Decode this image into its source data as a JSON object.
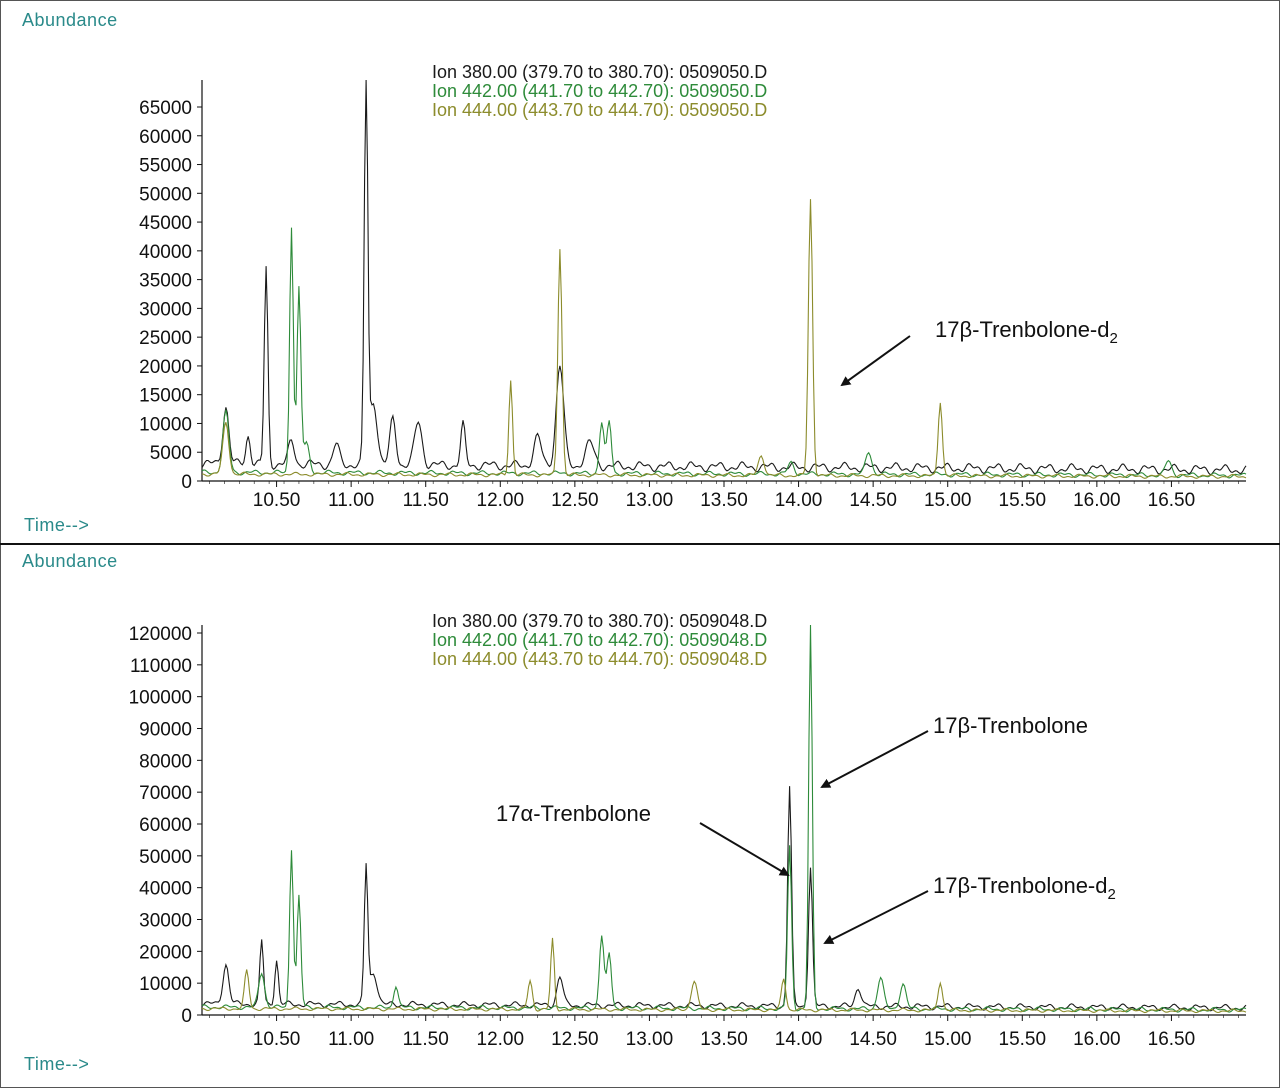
{
  "colors": {
    "accent": "#2a8a8a",
    "ion380": "#1a1a1a",
    "ion442": "#2e8b3a",
    "ion444": "#8c8c2c",
    "axis": "#111111"
  },
  "chart_data": [
    {
      "type": "line",
      "ylabel": "Abundance",
      "xlabel": "Time-->",
      "xlim": [
        10.0,
        17.0
      ],
      "ylim": [
        0,
        70000
      ],
      "yticks": [
        0,
        5000,
        10000,
        15000,
        20000,
        25000,
        30000,
        35000,
        40000,
        45000,
        50000,
        55000,
        60000,
        65000
      ],
      "xticks": [
        10.5,
        11.0,
        11.5,
        12.0,
        12.5,
        13.0,
        13.5,
        14.0,
        14.5,
        15.0,
        15.5,
        16.0,
        16.5
      ],
      "xtick_labels": [
        "10.50",
        "11.00",
        "11.50",
        "12.00",
        "12.50",
        "13.00",
        "13.50",
        "14.00",
        "14.50",
        "15.00",
        "15.50",
        "16.00",
        "16.50"
      ],
      "legend": [
        "Ion 380.00 (379.70 to 380.70): 0509050.D",
        "Ion 442.00 (441.70 to 442.70): 0509050.D",
        "Ion 444.00 (443.70 to 444.70): 0509050.D"
      ],
      "annotations": [
        {
          "text": "17β-Trenbolone-d",
          "sub": "2",
          "x": 14.05,
          "y": 18000
        }
      ],
      "series": [
        {
          "name": "Ion 380.00 (379.70 to 380.70): 0509050.D",
          "baseline": 3000,
          "peaks": [
            [
              10.16,
              10000,
              0.02
            ],
            [
              10.31,
              5000,
              0.015
            ],
            [
              10.43,
              34000,
              0.012
            ],
            [
              10.6,
              4000,
              0.02
            ],
            [
              10.9,
              3500,
              0.02
            ],
            [
              11.1,
              69000,
              0.012
            ],
            [
              11.15,
              11000,
              0.025
            ],
            [
              11.28,
              8000,
              0.02
            ],
            [
              11.45,
              7500,
              0.025
            ],
            [
              11.75,
              7000,
              0.015
            ],
            [
              12.25,
              5000,
              0.025
            ],
            [
              12.4,
              17500,
              0.025
            ],
            [
              12.6,
              4000,
              0.03
            ]
          ]
        },
        {
          "name": "Ion 442.00 (441.70 to 442.70): 0509050.D",
          "baseline": 1500,
          "peaks": [
            [
              10.16,
              10500,
              0.02
            ],
            [
              10.6,
              43000,
              0.012
            ],
            [
              10.65,
              32000,
              0.013
            ],
            [
              10.7,
              5000,
              0.02
            ],
            [
              12.68,
              9000,
              0.015
            ],
            [
              12.73,
              9000,
              0.015
            ],
            [
              13.95,
              2000,
              0.02
            ],
            [
              14.47,
              4000,
              0.02
            ],
            [
              16.48,
              2500,
              0.02
            ]
          ]
        },
        {
          "name": "Ion 444.00 (443.70 to 444.70): 0509050.D",
          "baseline": 1200,
          "peaks": [
            [
              10.16,
              9000,
              0.02
            ],
            [
              12.07,
              16500,
              0.012
            ],
            [
              12.4,
              39500,
              0.014
            ],
            [
              13.75,
              3500,
              0.02
            ],
            [
              14.08,
              48000,
              0.014
            ],
            [
              14.95,
              13000,
              0.014
            ]
          ]
        }
      ]
    },
    {
      "type": "line",
      "ylabel": "Abundance",
      "xlabel": "Time-->",
      "xlim": [
        10.0,
        17.0
      ],
      "ylim": [
        0,
        125000
      ],
      "yticks": [
        0,
        10000,
        20000,
        30000,
        40000,
        50000,
        60000,
        70000,
        80000,
        90000,
        100000,
        110000,
        120000
      ],
      "xticks": [
        10.5,
        11.0,
        11.5,
        12.0,
        12.5,
        13.0,
        13.5,
        14.0,
        14.5,
        15.0,
        15.5,
        16.0,
        16.5
      ],
      "xtick_labels": [
        "10.50",
        "11.00",
        "11.50",
        "12.00",
        "12.50",
        "13.00",
        "13.50",
        "14.00",
        "14.50",
        "15.00",
        "15.50",
        "16.00",
        "16.50"
      ],
      "legend": [
        "Ion 380.00 (379.70 to 380.70): 0509048.D",
        "Ion 442.00 (441.70 to 442.70): 0509048.D",
        "Ion 444.00 (443.70 to 444.70): 0509048.D"
      ],
      "annotations": [
        {
          "text": "17β-Trenbolone",
          "x": 14.1,
          "y": 70000
        },
        {
          "text": "17α-Trenbolone",
          "x": 13.9,
          "y": 45000
        },
        {
          "text": "17β-Trenbolone-d",
          "sub": "2",
          "x": 14.1,
          "y": 25000
        }
      ],
      "series": [
        {
          "name": "Ion 380.00 (379.70 to 380.70): 0509048.D",
          "baseline": 3500,
          "peaks": [
            [
              10.16,
              12500,
              0.02
            ],
            [
              10.4,
              20000,
              0.012
            ],
            [
              10.5,
              14000,
              0.012
            ],
            [
              11.1,
              43000,
              0.012
            ],
            [
              11.15,
              10000,
              0.025
            ],
            [
              12.4,
              9000,
              0.02
            ],
            [
              13.94,
              69000,
              0.013
            ],
            [
              14.08,
              44000,
              0.013
            ],
            [
              14.4,
              6000,
              0.02
            ]
          ]
        },
        {
          "name": "Ion 442.00 (441.70 to 442.70): 0509048.D",
          "baseline": 2500,
          "peaks": [
            [
              10.4,
              11000,
              0.02
            ],
            [
              10.6,
              50000,
              0.012
            ],
            [
              10.65,
              35000,
              0.013
            ],
            [
              11.3,
              7000,
              0.015
            ],
            [
              12.68,
              23000,
              0.015
            ],
            [
              12.73,
              17000,
              0.015
            ],
            [
              13.94,
              51000,
              0.013
            ],
            [
              14.08,
              120000,
              0.012
            ],
            [
              14.55,
              10000,
              0.02
            ],
            [
              14.7,
              8000,
              0.02
            ]
          ]
        },
        {
          "name": "Ion 444.00 (443.70 to 444.70): 0509048.D",
          "baseline": 2000,
          "peaks": [
            [
              10.3,
              12000,
              0.015
            ],
            [
              12.2,
              9000,
              0.015
            ],
            [
              12.35,
              22000,
              0.012
            ],
            [
              13.3,
              9000,
              0.02
            ],
            [
              13.9,
              10000,
              0.015
            ],
            [
              14.95,
              9000,
              0.015
            ]
          ]
        }
      ]
    }
  ]
}
